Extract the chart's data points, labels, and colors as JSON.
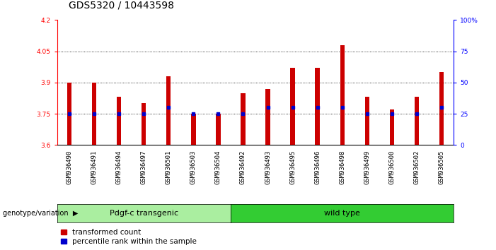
{
  "title": "GDS5320 / 10443598",
  "samples": [
    "GSM936490",
    "GSM936491",
    "GSM936494",
    "GSM936497",
    "GSM936501",
    "GSM936503",
    "GSM936504",
    "GSM936492",
    "GSM936493",
    "GSM936495",
    "GSM936496",
    "GSM936498",
    "GSM936499",
    "GSM936500",
    "GSM936502",
    "GSM936505"
  ],
  "red_values": [
    3.9,
    3.9,
    3.83,
    3.8,
    3.93,
    3.75,
    3.75,
    3.85,
    3.87,
    3.97,
    3.97,
    4.08,
    3.83,
    3.77,
    3.83,
    3.95
  ],
  "blue_values": [
    3.75,
    3.75,
    3.75,
    3.75,
    3.78,
    3.75,
    3.75,
    3.75,
    3.78,
    3.78,
    3.78,
    3.78,
    3.75,
    3.75,
    3.75,
    3.78
  ],
  "ymin": 3.6,
  "ymax": 4.2,
  "yticks": [
    3.6,
    3.75,
    3.9,
    4.05,
    4.2
  ],
  "right_yticks": [
    0,
    25,
    50,
    75,
    100
  ],
  "right_ytick_labels": [
    "0",
    "25",
    "50",
    "75",
    "100%"
  ],
  "group1_label": "Pdgf-c transgenic",
  "group2_label": "wild type",
  "group1_count": 7,
  "group2_count": 9,
  "genotype_label": "genotype/variation",
  "legend1": "transformed count",
  "legend2": "percentile rank within the sample",
  "bar_color": "#cc0000",
  "dot_color": "#0000cc",
  "group1_bg": "#aaeea0",
  "group2_bg": "#33cc33",
  "bar_width": 0.18,
  "title_fontsize": 10,
  "tick_fontsize": 6.5,
  "label_fontsize": 8
}
